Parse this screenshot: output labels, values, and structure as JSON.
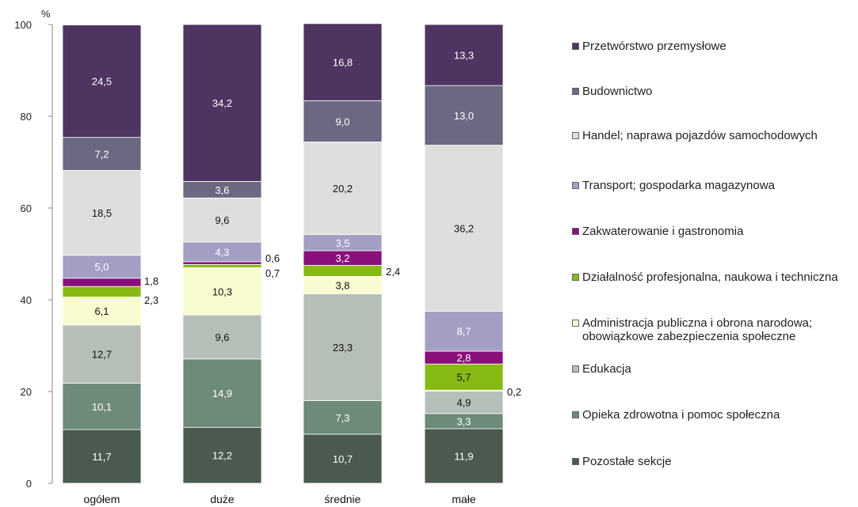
{
  "chart_data": {
    "type": "bar",
    "stacked": true,
    "y_unit": "%",
    "ylim": [
      0,
      100
    ],
    "yticks": [
      "0",
      "20",
      "40",
      "60",
      "80",
      "100"
    ],
    "categories": [
      "ogółem",
      "duże",
      "średnie",
      "małe"
    ],
    "series": [
      {
        "name": "Pozostałe sekcje",
        "color": "#4a5a4e",
        "values": [
          11.7,
          12.2,
          10.7,
          11.9
        ],
        "labels": [
          "11,7",
          "12,2",
          "10,7",
          "11,9"
        ]
      },
      {
        "name": "Opieka zdrowotna i pomoc społeczna",
        "color": "#6e8a78",
        "values": [
          10.1,
          14.9,
          7.3,
          3.3
        ],
        "labels": [
          "10,1",
          "14,9",
          "7,3",
          "3,3"
        ]
      },
      {
        "name": "Edukacja",
        "color": "#b5bfb7",
        "values": [
          12.7,
          9.6,
          23.3,
          4.9
        ],
        "labels": [
          "12,7",
          "9,6",
          "23,3",
          "4,9"
        ]
      },
      {
        "name": "Administracja publiczna i obrona narodowa; obowiązkowe zabezpieczenia społeczne",
        "color": "#f8fcd0",
        "values": [
          6.1,
          10.3,
          3.8,
          0.2
        ],
        "labels": [
          "6,1",
          "10,3",
          "3,8",
          "0,2"
        ]
      },
      {
        "name": "Działalność profesjonalna, naukowa i techniczna",
        "color": "#86ba12",
        "values": [
          2.3,
          0.7,
          2.4,
          5.7
        ],
        "labels": [
          "2,3",
          "0,7",
          "2,4",
          "5,7"
        ]
      },
      {
        "name": "Zakwaterowanie i gastronomia",
        "color": "#8a0f7a",
        "values": [
          1.8,
          0.6,
          3.2,
          2.8
        ],
        "labels": [
          "1,8",
          "0,6",
          "3,2",
          "2,8"
        ]
      },
      {
        "name": "Transport; gospodarka magazynowa",
        "color": "#a29ec4",
        "values": [
          5.0,
          4.3,
          3.5,
          8.7
        ],
        "labels": [
          "5,0",
          "4,3",
          "3,5",
          "8,7"
        ]
      },
      {
        "name": "Handel; naprawa pojazdów samochodowych",
        "color": "#dedede",
        "values": [
          18.5,
          9.6,
          20.2,
          36.2
        ],
        "labels": [
          "18,5",
          "9,6",
          "20,2",
          "36,2"
        ]
      },
      {
        "name": "Budownictwo",
        "color": "#6c6882",
        "values": [
          7.2,
          3.6,
          9.0,
          13.0
        ],
        "labels": [
          "7,2",
          "3,6",
          "9,0",
          "13,0"
        ]
      },
      {
        "name": "Przetwórstwo przemysłowe",
        "color": "#4e3460",
        "values": [
          24.5,
          34.2,
          16.8,
          13.3
        ],
        "labels": [
          "24,5",
          "34,2",
          "16,8",
          "13,3"
        ]
      }
    ],
    "legend": [
      "Przetwórstwo przemysłowe",
      "Budownictwo",
      "Handel; naprawa pojazdów samochodowych",
      "Transport; gospodarka magazynowa",
      "Zakwaterowanie i gastronomia",
      "Działalność profesjonalna, naukowa i techniczna",
      "Administracja publiczna i obrona narodowa; obowiązkowe zabezpieczenia społeczne",
      "Edukacja",
      "Opieka zdrowotna i pomoc społeczna",
      "Pozostałe sekcje"
    ],
    "legend_position": "right",
    "grid": false
  }
}
